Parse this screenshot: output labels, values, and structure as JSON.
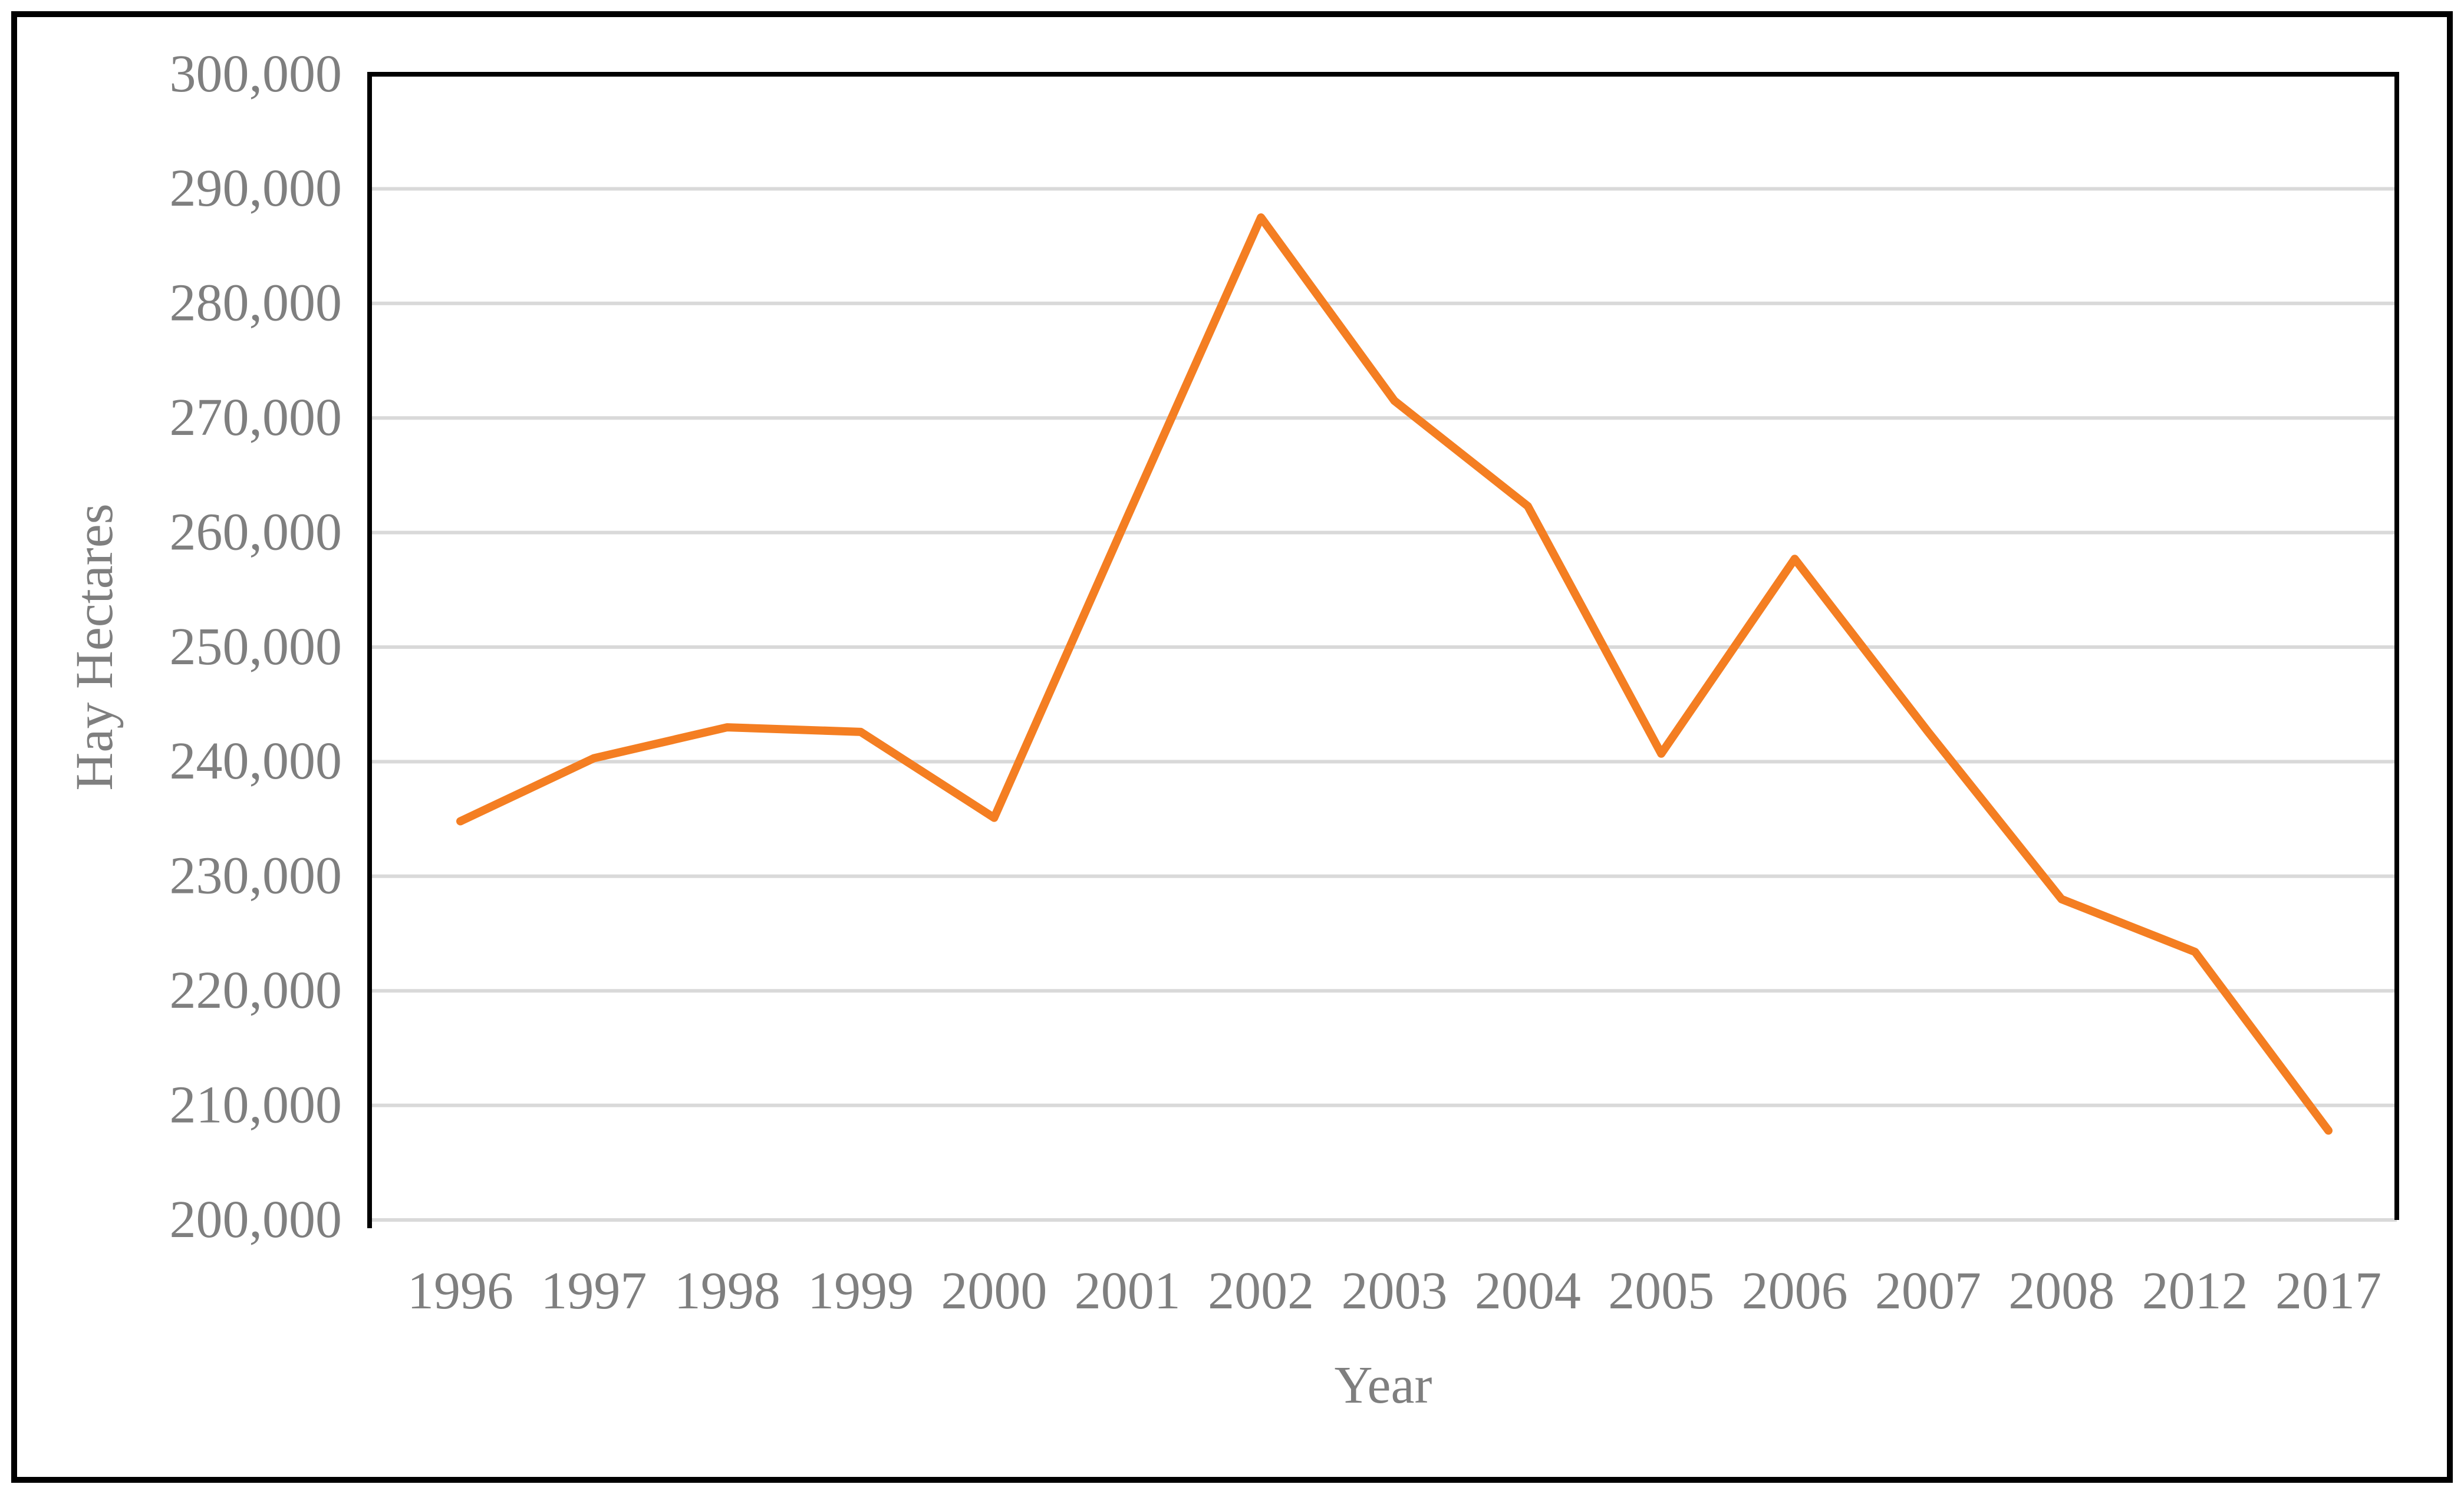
{
  "figure": {
    "background_color": "#ffffff",
    "border_color": "#000000"
  },
  "chart_data": {
    "type": "line",
    "title": "",
    "categories": [
      "1996",
      "1997",
      "1998",
      "1999",
      "2000",
      "2001",
      "2002",
      "2003",
      "2004",
      "2005",
      "2006",
      "2007",
      "2008",
      "2012",
      "2017"
    ],
    "values": [
      234800,
      240300,
      243000,
      242600,
      235100,
      261400,
      287500,
      271500,
      262300,
      240700,
      257700,
      242600,
      228000,
      223400,
      207800
    ],
    "xlabel": "Year",
    "ylabel": "Hay Hectares",
    "ylim": [
      200000,
      300000
    ],
    "ytick_step": 10000,
    "ytick_labels": [
      "300,000",
      "290,000",
      "280,000",
      "270,000",
      "260,000",
      "250,000",
      "240,000",
      "230,000",
      "220,000",
      "210,000",
      "200,000"
    ],
    "legend_position": "none",
    "grid": "horizontal",
    "line_color": "#F47E22",
    "gridline_color": "#D9D9D9",
    "axis_color": "#000000",
    "label_color": "#7F7F7F"
  }
}
